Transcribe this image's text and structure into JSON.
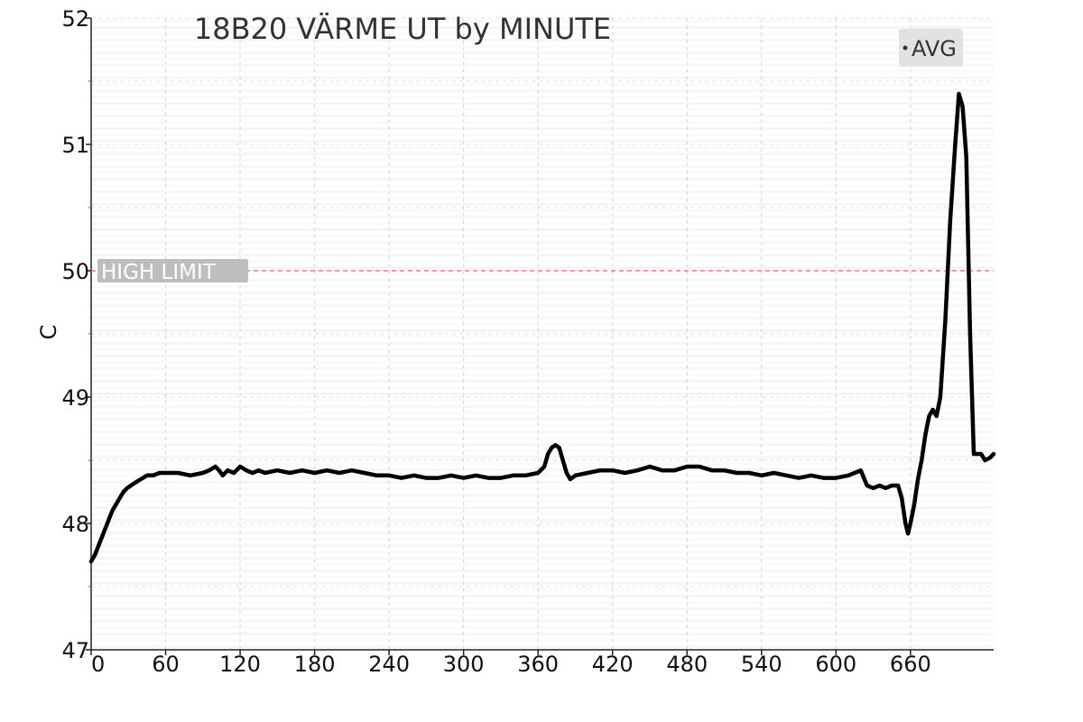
{
  "chart_data": {
    "type": "line",
    "title": "18B20 VÄRME UT by MINUTE",
    "xlabel": "",
    "ylabel": "C",
    "xlim": [
      0,
      727
    ],
    "ylim": [
      47,
      52
    ],
    "xticks": [
      0,
      60,
      120,
      180,
      240,
      300,
      360,
      420,
      480,
      540,
      600,
      660
    ],
    "xtick_labels": [
      "0",
      "60",
      "120",
      "180",
      "240",
      "300",
      "360",
      "420",
      "480",
      "540",
      "600",
      "660"
    ],
    "yticks": [
      47,
      48,
      49,
      50,
      51,
      52
    ],
    "ytick_labels": [
      "47",
      "48",
      "49",
      "50",
      "51",
      "52"
    ],
    "grid": true,
    "legend": {
      "position": "top-right",
      "entries": [
        "AVG"
      ]
    },
    "reference_lines": [
      {
        "label": "HIGH LIMIT",
        "y": 50,
        "color": "#e06060",
        "style": "dashed"
      }
    ],
    "series": [
      {
        "name": "AVG",
        "color": "#000000",
        "x": [
          0,
          3,
          5,
          7,
          9,
          11,
          13,
          15,
          17,
          20,
          23,
          26,
          29,
          32,
          35,
          40,
          45,
          50,
          55,
          60,
          70,
          80,
          90,
          95,
          100,
          103,
          106,
          110,
          115,
          120,
          125,
          130,
          135,
          140,
          150,
          160,
          170,
          180,
          190,
          200,
          210,
          220,
          230,
          240,
          250,
          260,
          270,
          280,
          290,
          300,
          310,
          320,
          330,
          340,
          350,
          360,
          365,
          368,
          371,
          374,
          377,
          380,
          383,
          386,
          390,
          400,
          410,
          420,
          430,
          440,
          450,
          460,
          470,
          480,
          490,
          500,
          510,
          520,
          530,
          540,
          550,
          560,
          570,
          580,
          590,
          600,
          610,
          615,
          620,
          625,
          630,
          635,
          640,
          645,
          650,
          653,
          656,
          658,
          660,
          663,
          666,
          669,
          672,
          675,
          678,
          681,
          684,
          688,
          692,
          696,
          699,
          702,
          705,
          708,
          711,
          714,
          717,
          720,
          724,
          727
        ],
        "y": [
          47.7,
          47.75,
          47.8,
          47.85,
          47.9,
          47.95,
          48.0,
          48.05,
          48.1,
          48.15,
          48.2,
          48.25,
          48.28,
          48.3,
          48.32,
          48.35,
          48.38,
          48.38,
          48.4,
          48.4,
          48.4,
          48.38,
          48.4,
          48.42,
          48.45,
          48.42,
          48.38,
          48.42,
          48.4,
          48.45,
          48.42,
          48.4,
          48.42,
          48.4,
          48.42,
          48.4,
          48.42,
          48.4,
          48.42,
          48.4,
          48.42,
          48.4,
          48.38,
          48.38,
          48.36,
          48.38,
          48.36,
          48.36,
          48.38,
          48.36,
          48.38,
          48.36,
          48.36,
          48.38,
          48.38,
          48.4,
          48.45,
          48.55,
          48.6,
          48.62,
          48.6,
          48.5,
          48.4,
          48.35,
          48.38,
          48.4,
          48.42,
          48.42,
          48.4,
          48.42,
          48.45,
          48.42,
          48.42,
          48.45,
          48.45,
          48.42,
          48.42,
          48.4,
          48.4,
          48.38,
          48.4,
          48.38,
          48.36,
          48.38,
          48.36,
          48.36,
          48.38,
          48.4,
          48.42,
          48.3,
          48.28,
          48.3,
          48.28,
          48.3,
          48.3,
          48.2,
          48.0,
          47.92,
          48.0,
          48.15,
          48.35,
          48.5,
          48.7,
          48.85,
          48.9,
          48.85,
          49.0,
          49.6,
          50.4,
          51.0,
          51.4,
          51.3,
          50.9,
          49.5,
          48.55,
          48.55,
          48.55,
          48.5,
          48.52,
          48.55
        ]
      }
    ]
  }
}
